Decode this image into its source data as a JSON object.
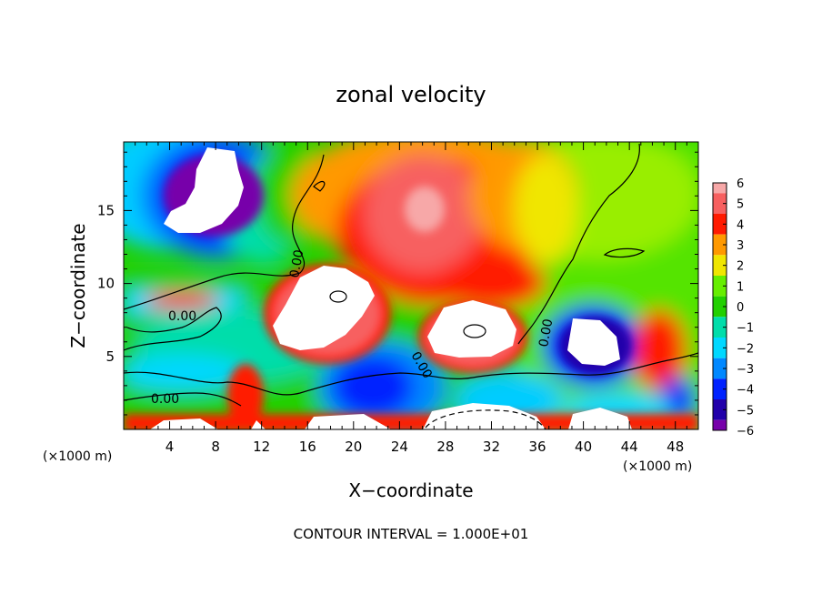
{
  "chart_data": {
    "type": "heatmap",
    "title": "zonal velocity",
    "xlabel": "X−coordinate",
    "ylabel": "Z−coordinate",
    "x_scale_note": "(×1000 m)",
    "y_scale_note": "(×1000 m)",
    "footer": "CONTOUR INTERVAL = 1.000E+01",
    "xlim": [
      0,
      50
    ],
    "ylim": [
      0,
      19.7
    ],
    "x_ticks": [
      4,
      8,
      12,
      16,
      20,
      24,
      28,
      32,
      36,
      40,
      44,
      48
    ],
    "y_ticks": [
      5,
      10,
      15
    ],
    "contour_labels": [
      "0.00",
      "0.00",
      "0.00",
      "0.00",
      "0.00"
    ],
    "colorbar": {
      "range": [
        -6,
        6
      ],
      "ticks": [
        "6",
        "5",
        "4",
        "3",
        "2",
        "1",
        "0",
        "−1",
        "−2",
        "−3",
        "−4",
        "−5",
        "−6"
      ]
    },
    "colors": {
      "v6": "#f7a8a8",
      "v5": "#f76060",
      "v4": "#ff1a00",
      "v3": "#ff9900",
      "v2": "#f0e600",
      "v1": "#66ee00",
      "v0": "#22d000",
      "vm1": "#00ddaa",
      "vm2": "#00d8ff",
      "vm3": "#0088ff",
      "vm4": "#0022ff",
      "vm5": "#2200aa",
      "vm6": "#7700aa"
    }
  }
}
